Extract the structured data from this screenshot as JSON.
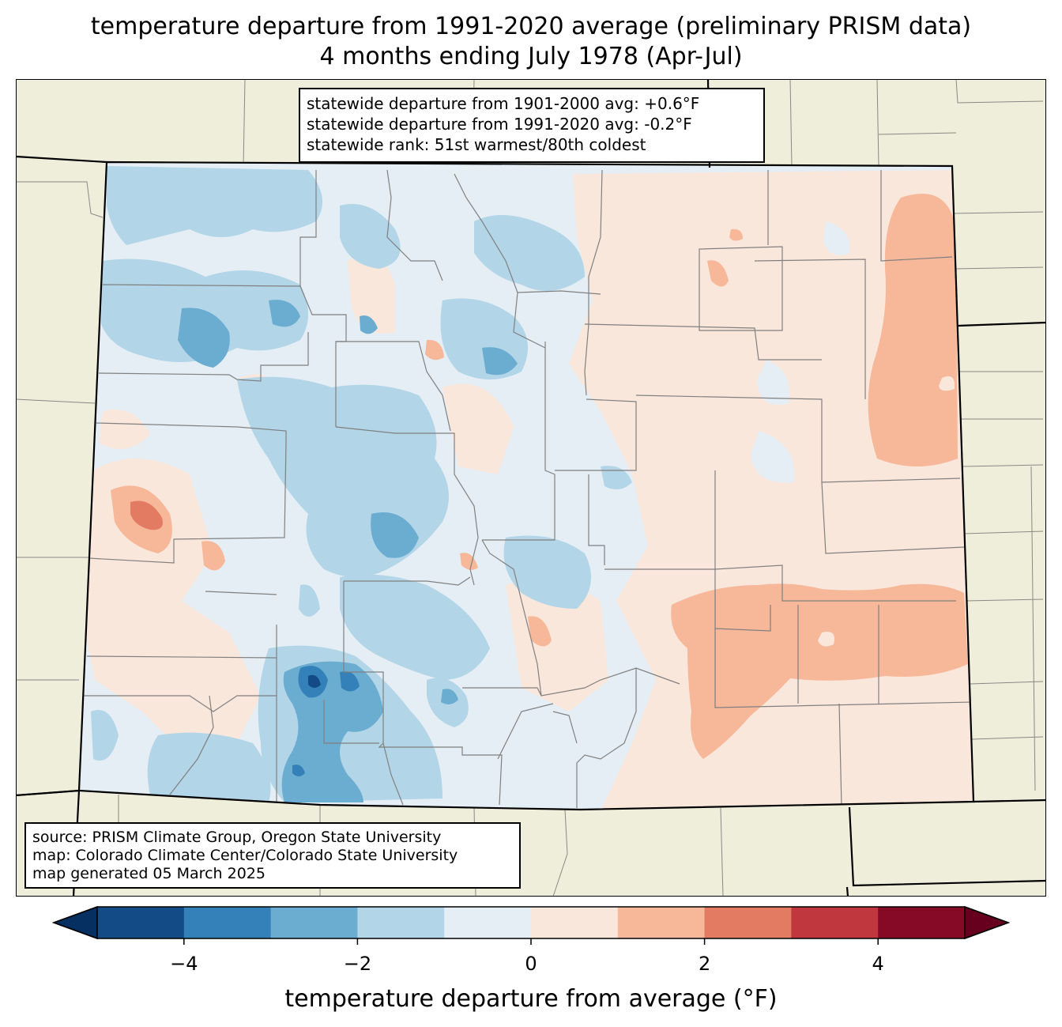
{
  "title": {
    "line1": "temperature departure from 1991-2020 average (preliminary PRISM data)",
    "line2": "4 months ending July 1978 (Apr-Jul)"
  },
  "stats_box": {
    "line1": "statewide departure from 1901-2000 avg: +0.6°F",
    "line2": "statewide departure from 1991-2020 avg: -0.2°F",
    "line3": "statewide rank: 51st warmest/80th coldest"
  },
  "source_box": {
    "line1": "source: PRISM Climate Group, Oregon State University",
    "line2": "map: Colorado Climate Center/Colorado State University",
    "line3": "map generated 05 March 2025"
  },
  "colorbar": {
    "label": "temperature departure from average (°F)",
    "ticks": [
      "−4",
      "−2",
      "0",
      "2",
      "4"
    ],
    "bins": [
      {
        "from": -5,
        "to": -4,
        "color": "#134b87"
      },
      {
        "from": -4,
        "to": -3,
        "color": "#3480b9"
      },
      {
        "from": -3,
        "to": -2,
        "color": "#6bacd1"
      },
      {
        "from": -2,
        "to": -1,
        "color": "#b2d5e7"
      },
      {
        "from": -1,
        "to": 0,
        "color": "#e5eef4"
      },
      {
        "from": 0,
        "to": 1,
        "color": "#fae7dc"
      },
      {
        "from": 1,
        "to": 2,
        "color": "#f7b799"
      },
      {
        "from": 2,
        "to": 3,
        "color": "#e27b62"
      },
      {
        "from": 3,
        "to": 4,
        "color": "#c0383e"
      },
      {
        "from": 4,
        "to": 5,
        "color": "#860a25"
      }
    ],
    "under_color": "#053061",
    "over_color": "#67001f"
  },
  "map_colors": {
    "land": "#efeedb",
    "state_border": "#000000",
    "county_border": "#808080"
  }
}
